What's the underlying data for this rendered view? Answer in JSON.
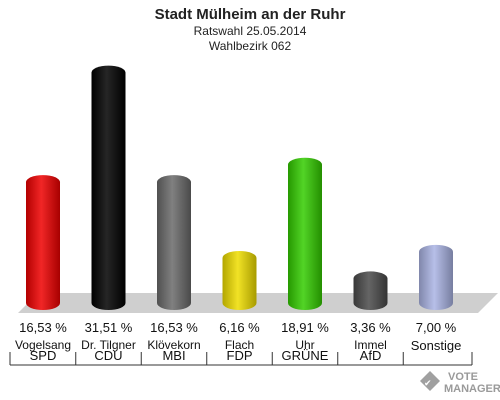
{
  "title": "Stadt Mülheim an der Ruhr",
  "subtitle1": "Ratswahl 25.05.2014",
  "subtitle2": "Wahlbezirk 062",
  "logo": {
    "line1": "VOTE",
    "line2": "MANAGER"
  },
  "chart_data": {
    "type": "bar",
    "title": "Stadt Mülheim an der Ruhr",
    "candidates": [
      "Vogelsang",
      "Dr. Tilgner",
      "Klövekorn",
      "Flach",
      "Uhr",
      "Immel",
      ""
    ],
    "categories": [
      "SPD",
      "CDU",
      "MBI",
      "FDP",
      "GRÜNE",
      "AfD",
      "Sonstige"
    ],
    "values": [
      16.53,
      31.51,
      16.53,
      6.16,
      18.91,
      3.36,
      7.0
    ],
    "value_labels": [
      "16,53 %",
      "31,51 %",
      "16,53 %",
      "6,16 %",
      "18,91 %",
      "3,36 %",
      "7,00 %"
    ],
    "colors": [
      "#ee0000",
      "#000000",
      "#6a6a6a",
      "#eedd00",
      "#33cc00",
      "#4a4a4a",
      "#aab4e4"
    ],
    "ylim": [
      0,
      32
    ],
    "grid": false,
    "legend": "none"
  }
}
